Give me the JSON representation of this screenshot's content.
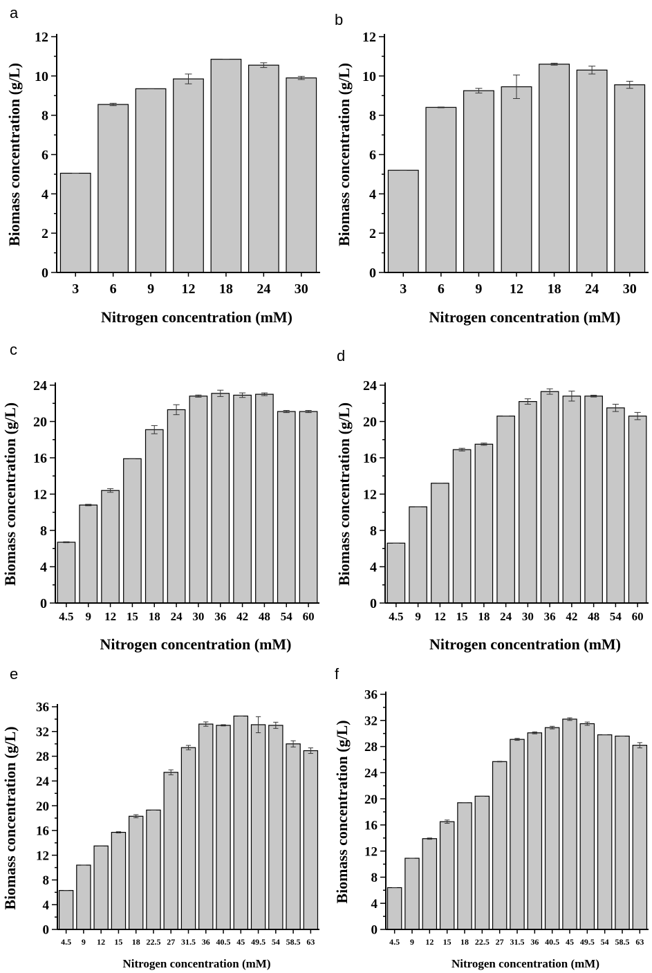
{
  "chart_data": [
    {
      "panel": "a",
      "type": "bar",
      "categories": [
        "3",
        "6",
        "9",
        "12",
        "18",
        "24",
        "30"
      ],
      "values": [
        5.05,
        8.55,
        9.35,
        9.85,
        10.85,
        10.55,
        9.9
      ],
      "errors": [
        0,
        0.06,
        0,
        0.25,
        0,
        0.12,
        0.08
      ],
      "ylim": [
        0,
        12
      ],
      "yticks": [
        0,
        2,
        4,
        6,
        8,
        10,
        12
      ],
      "xlabel": "Nitrogen concentration (mM)",
      "ylabel": "Biomass concentration (g/L)"
    },
    {
      "panel": "b",
      "type": "bar",
      "categories": [
        "3",
        "6",
        "9",
        "12",
        "18",
        "24",
        "30"
      ],
      "values": [
        5.2,
        8.4,
        9.25,
        9.45,
        10.6,
        10.3,
        9.55
      ],
      "errors": [
        0,
        0.02,
        0.12,
        0.6,
        0.05,
        0.2,
        0.18
      ],
      "ylim": [
        0,
        12
      ],
      "yticks": [
        0,
        2,
        4,
        6,
        8,
        10,
        12
      ],
      "xlabel": "Nitrogen concentration (mM)",
      "ylabel": "Biomass concentration (g/L)"
    },
    {
      "panel": "c",
      "type": "bar",
      "categories": [
        "4.5",
        "9",
        "12",
        "15",
        "18",
        "24",
        "30",
        "36",
        "42",
        "48",
        "54",
        "60"
      ],
      "values": [
        6.7,
        10.8,
        12.4,
        15.9,
        19.1,
        21.3,
        22.8,
        23.1,
        22.9,
        23.0,
        21.1,
        21.1
      ],
      "errors": [
        0.05,
        0.08,
        0.2,
        0,
        0.45,
        0.55,
        0.12,
        0.35,
        0.25,
        0.15,
        0.12,
        0.12
      ],
      "ylim": [
        0,
        24
      ],
      "yticks": [
        0,
        4,
        8,
        12,
        16,
        20,
        24
      ],
      "xlabel": "Nitrogen concentration (mM)",
      "ylabel": "Biomass concentration (g/L)"
    },
    {
      "panel": "d",
      "type": "bar",
      "categories": [
        "4.5",
        "9",
        "12",
        "15",
        "18",
        "24",
        "30",
        "36",
        "42",
        "48",
        "54",
        "60"
      ],
      "values": [
        6.6,
        10.6,
        13.2,
        16.9,
        17.5,
        20.6,
        22.2,
        23.3,
        22.8,
        22.8,
        21.5,
        20.6
      ],
      "errors": [
        0,
        0,
        0,
        0.15,
        0.12,
        0,
        0.3,
        0.3,
        0.55,
        0.1,
        0.4,
        0.4
      ],
      "ylim": [
        0,
        24
      ],
      "yticks": [
        0,
        4,
        8,
        12,
        16,
        20,
        24
      ],
      "xlabel": "Nitrogen concentration (mM)",
      "ylabel": "Biomass concentration (g/L)"
    },
    {
      "panel": "e",
      "type": "bar",
      "categories": [
        "4.5",
        "9",
        "12",
        "15",
        "18",
        "22.5",
        "27",
        "31.5",
        "36",
        "40.5",
        "45",
        "49.5",
        "54",
        "58.5",
        "63"
      ],
      "values": [
        6.3,
        10.4,
        13.5,
        15.7,
        18.3,
        19.3,
        25.4,
        29.4,
        33.2,
        33.0,
        34.5,
        33.1,
        33.0,
        30.0,
        28.9
      ],
      "errors": [
        0,
        0,
        0,
        0.1,
        0.25,
        0,
        0.4,
        0.35,
        0.35,
        0.1,
        0,
        1.3,
        0.5,
        0.5,
        0.45
      ],
      "ylim": [
        0,
        36
      ],
      "yticks": [
        0,
        4,
        8,
        12,
        16,
        20,
        24,
        28,
        32,
        36
      ],
      "xlabel": "Nitrogen concentration (mM)",
      "ylabel": "Biomass concentration (g/L)"
    },
    {
      "panel": "f",
      "type": "bar",
      "categories": [
        "4.5",
        "9",
        "12",
        "15",
        "18",
        "22.5",
        "27",
        "31.5",
        "36",
        "40.5",
        "45",
        "49.5",
        "54",
        "58.5",
        "63"
      ],
      "values": [
        6.4,
        10.9,
        13.9,
        16.5,
        19.4,
        20.4,
        25.7,
        29.1,
        30.1,
        30.9,
        32.2,
        31.5,
        29.8,
        29.6,
        28.2
      ],
      "errors": [
        0,
        0,
        0.1,
        0.25,
        0,
        0,
        0.05,
        0.15,
        0.15,
        0.2,
        0.2,
        0.25,
        0,
        0,
        0.4
      ],
      "ylim": [
        0,
        36
      ],
      "yticks": [
        0,
        4,
        8,
        12,
        16,
        20,
        24,
        28,
        32,
        36
      ],
      "xlabel": "Nitrogen concentration (mM)",
      "ylabel": "Biomass concentration (g/L)"
    }
  ]
}
